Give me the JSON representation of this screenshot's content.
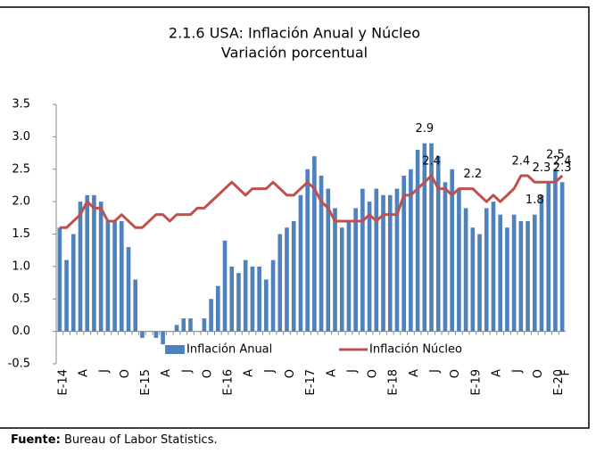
{
  "chart_data": {
    "type": "combo",
    "title": "2.1.6  USA: Inflación Anual y Núcleo",
    "subtitle": "Variación porcentual",
    "source_label": "Fuente:",
    "source": "Bureau of Labor Statistics.",
    "categories": [
      "E-14",
      null,
      null,
      "A",
      null,
      null,
      "J",
      null,
      null,
      "O",
      null,
      null,
      "E-15",
      null,
      null,
      "A",
      null,
      null,
      "J",
      null,
      null,
      "O",
      null,
      null,
      "E-16",
      null,
      null,
      "A",
      null,
      null,
      "J",
      null,
      null,
      "O",
      null,
      null,
      "E-17",
      null,
      null,
      "A",
      null,
      null,
      "J",
      null,
      null,
      "O",
      null,
      null,
      "E-18",
      null,
      null,
      "A",
      null,
      null,
      "J",
      null,
      null,
      "O",
      null,
      null,
      "E-19",
      null,
      null,
      "A",
      null,
      null,
      "J",
      null,
      null,
      "O",
      null,
      null,
      "E-20",
      "F"
    ],
    "series": [
      {
        "name": "Inflación Anual",
        "type": "bar",
        "color": "#4f81bd",
        "label_color": "#2e3ea0",
        "values": [
          1.6,
          1.1,
          1.5,
          2.0,
          2.1,
          2.1,
          2.0,
          1.7,
          1.7,
          1.7,
          1.3,
          0.8,
          -0.1,
          0.0,
          -0.1,
          -0.2,
          0.0,
          0.1,
          0.2,
          0.2,
          0.0,
          0.2,
          0.5,
          0.7,
          1.4,
          1.0,
          0.9,
          1.1,
          1.0,
          1.0,
          0.8,
          1.1,
          1.5,
          1.6,
          1.7,
          2.1,
          2.5,
          2.7,
          2.4,
          2.2,
          1.9,
          1.6,
          1.7,
          1.9,
          2.2,
          2.0,
          2.2,
          2.1,
          2.1,
          2.2,
          2.4,
          2.5,
          2.8,
          2.9,
          2.9,
          2.7,
          2.3,
          2.5,
          2.2,
          1.9,
          1.6,
          1.5,
          1.9,
          2.0,
          1.8,
          1.6,
          1.8,
          1.7,
          1.7,
          1.8,
          2.1,
          2.3,
          2.5,
          2.3
        ],
        "value_labels": [
          null,
          null,
          null,
          null,
          null,
          null,
          null,
          null,
          null,
          null,
          null,
          null,
          null,
          null,
          null,
          null,
          null,
          null,
          null,
          null,
          null,
          null,
          null,
          null,
          null,
          null,
          null,
          null,
          null,
          null,
          null,
          null,
          null,
          null,
          null,
          null,
          null,
          null,
          null,
          null,
          null,
          null,
          null,
          null,
          null,
          null,
          null,
          null,
          null,
          null,
          null,
          null,
          null,
          "2.9",
          null,
          null,
          null,
          null,
          null,
          null,
          null,
          null,
          null,
          null,
          null,
          null,
          null,
          null,
          null,
          "1.8",
          null,
          null,
          "2.5",
          "2.3"
        ]
      },
      {
        "name": "Inflación Núcleo",
        "type": "line",
        "color": "#c0504d",
        "label_color": "#c00000",
        "values": [
          1.6,
          1.6,
          1.7,
          1.8,
          2.0,
          1.9,
          1.9,
          1.7,
          1.7,
          1.8,
          1.7,
          1.6,
          1.6,
          1.7,
          1.8,
          1.8,
          1.7,
          1.8,
          1.8,
          1.8,
          1.9,
          1.9,
          2.0,
          2.1,
          2.2,
          2.3,
          2.2,
          2.1,
          2.2,
          2.2,
          2.2,
          2.3,
          2.2,
          2.1,
          2.1,
          2.2,
          2.3,
          2.2,
          2.0,
          1.9,
          1.7,
          1.7,
          1.7,
          1.7,
          1.7,
          1.8,
          1.7,
          1.8,
          1.8,
          1.8,
          2.1,
          2.1,
          2.2,
          2.3,
          2.4,
          2.2,
          2.2,
          2.1,
          2.2,
          2.2,
          2.2,
          2.1,
          2.0,
          2.1,
          2.0,
          2.1,
          2.2,
          2.4,
          2.4,
          2.3,
          2.3,
          2.3,
          2.3,
          2.4
        ],
        "value_labels": [
          null,
          null,
          null,
          null,
          null,
          null,
          null,
          null,
          null,
          null,
          null,
          null,
          null,
          null,
          null,
          null,
          null,
          null,
          null,
          null,
          null,
          null,
          null,
          null,
          null,
          null,
          null,
          null,
          null,
          null,
          null,
          null,
          null,
          null,
          null,
          null,
          null,
          null,
          null,
          null,
          null,
          null,
          null,
          null,
          null,
          null,
          null,
          null,
          null,
          null,
          null,
          null,
          null,
          null,
          "2.4",
          null,
          null,
          null,
          null,
          null,
          "2.2",
          null,
          null,
          null,
          null,
          null,
          null,
          "2.4",
          null,
          null,
          "2.3",
          null,
          null,
          "2.4"
        ]
      }
    ],
    "ylim": [
      -0.5,
      3.5
    ],
    "yticks": [
      {
        "value": 3.5,
        "label": "3.5"
      },
      {
        "value": 3,
        "label": "3.0"
      },
      {
        "value": 2.5,
        "label": "2.5"
      },
      {
        "value": 2,
        "label": "2.0"
      },
      {
        "value": 1.5,
        "label": "1.5"
      },
      {
        "value": 1,
        "label": "1.0"
      },
      {
        "value": 0.5,
        "label": "0.5"
      },
      {
        "value": 0,
        "label": "0.0"
      },
      {
        "value": -0.5,
        "label": "-0.5"
      }
    ],
    "grid": false
  }
}
